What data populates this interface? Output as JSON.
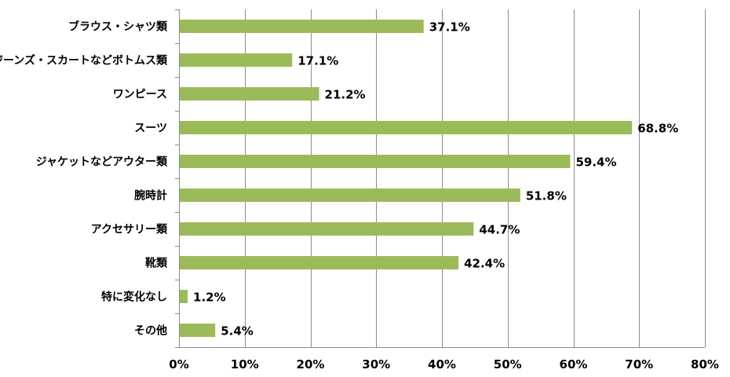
{
  "chart_data": {
    "type": "bar",
    "orientation": "horizontal",
    "categories": [
      "ブラウス・シャツ類",
      "ジーンズ・スカートなどボトムス類",
      "ワンピース",
      "スーツ",
      "ジャケットなどアウター類",
      "腕時計",
      "アクセサリー類",
      "靴類",
      "特に変化なし",
      "その他"
    ],
    "values": [
      37.1,
      17.1,
      21.2,
      68.8,
      59.4,
      51.8,
      44.7,
      42.4,
      1.2,
      5.4
    ],
    "data_labels": [
      "37.1%",
      "17.1%",
      "21.2%",
      "68.8%",
      "59.4%",
      "51.8%",
      "44.7%",
      "42.4%",
      "1.2%",
      "5.4%"
    ],
    "xlim": [
      0,
      80
    ],
    "xticks": [
      0,
      10,
      20,
      30,
      40,
      50,
      60,
      70,
      80
    ],
    "xtick_labels": [
      "0%",
      "10%",
      "20%",
      "30%",
      "40%",
      "50%",
      "60%",
      "70%",
      "80%"
    ],
    "grid": "vertical",
    "legend": "none",
    "bar_color": "#9bbb59"
  }
}
